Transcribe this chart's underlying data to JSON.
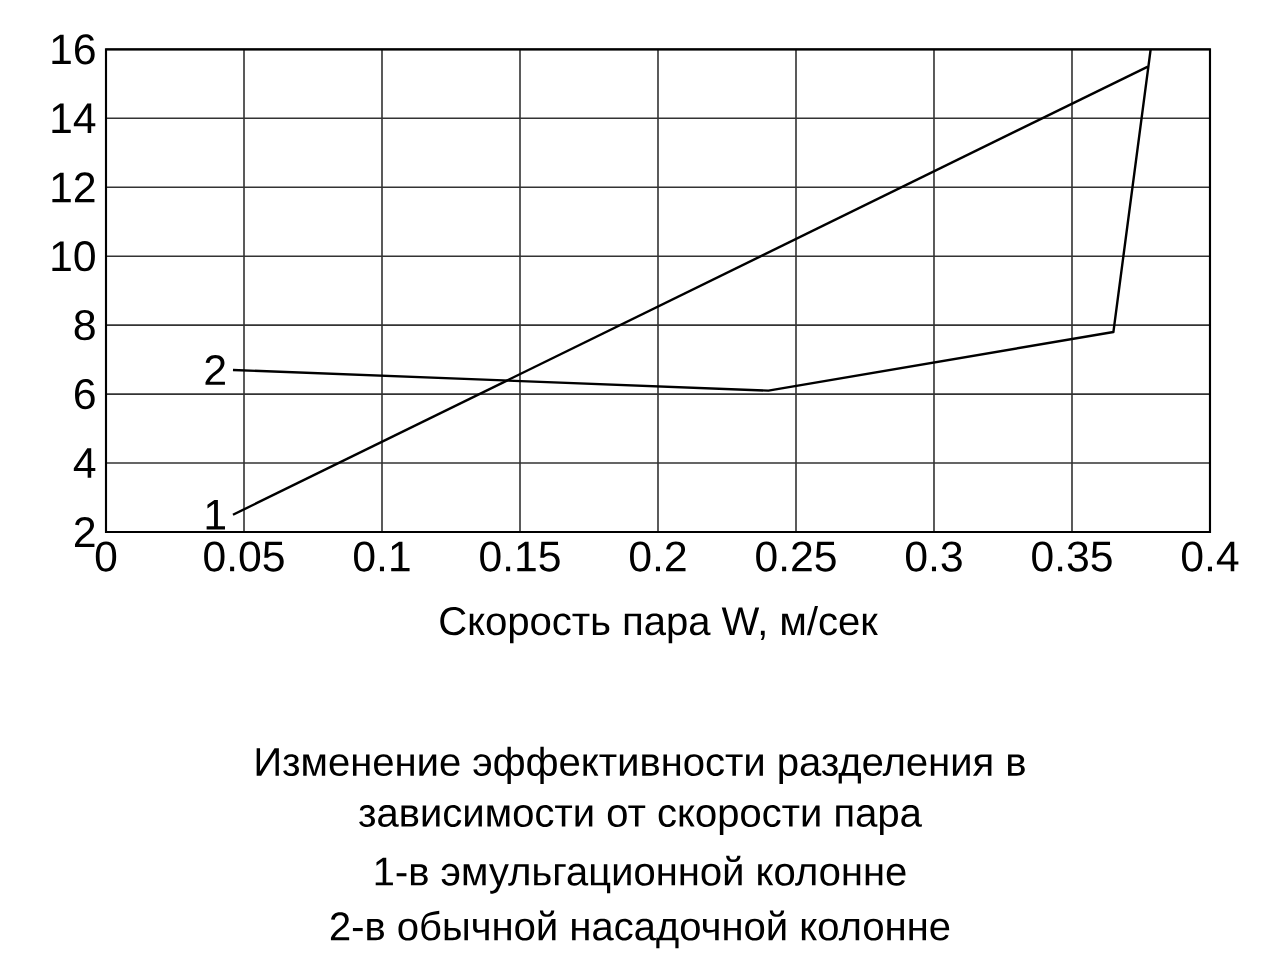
{
  "chart_data": {
    "type": "line",
    "xlabel": "Скорость пара W, м/сек",
    "xlim": [
      0,
      0.4
    ],
    "xticks": [
      0,
      0.05,
      0.1,
      0.15,
      0.2,
      0.25,
      0.3,
      0.35,
      0.4
    ],
    "ylim": [
      2,
      16
    ],
    "yticks": [
      2,
      4,
      6,
      8,
      10,
      12,
      14,
      16
    ],
    "grid": true,
    "marker": "none",
    "line_style": "solid",
    "series": [
      {
        "name": "1",
        "color": "#000000",
        "x": [
          0.046,
          0.3775
        ],
        "values": [
          2.5,
          15.5
        ]
      },
      {
        "name": "2",
        "color": "#000000",
        "x": [
          0.046,
          0.24,
          0.365,
          0.3785
        ],
        "values": [
          6.7,
          6.1,
          7.8,
          16
        ]
      }
    ],
    "annotations": [
      "Изменение эффективности разделения в",
      "зависимости от скорости пара",
      "1-в эмульгационной колонне",
      "2-в обычной насадочной колонне"
    ]
  }
}
